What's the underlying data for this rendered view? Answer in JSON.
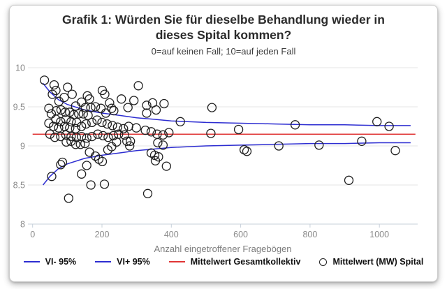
{
  "chart_data": {
    "type": "scatter",
    "title": "Grafik 1: Würden Sie für dieselbe Behandlung wieder in dieses Spital kommen?",
    "subtitle": "0=auf keinen Fall; 10=auf jeden Fall",
    "xlabel": "Anzahl eingetroffener Fragebögen",
    "ylabel": "",
    "xlim": [
      0,
      1120
    ],
    "ylim": [
      8,
      10
    ],
    "xticks": [
      0,
      200,
      400,
      600,
      800,
      1000
    ],
    "yticks": [
      10,
      9.5,
      9,
      8.5,
      8
    ],
    "ytick_labels": [
      "10",
      "9.5",
      "9",
      "8.5",
      "8"
    ],
    "grid": "horizontal-only",
    "legend_position": "bottom",
    "colors": {
      "band_line": "#2d2dd1",
      "mean_line": "#e03535",
      "marker_stroke": "#1f1f1f",
      "grid": "#e6e6e6",
      "axis": "#c7d0da",
      "tick_text": "#8a8a8a",
      "axis_title_text": "#7d7d7d"
    },
    "series": [
      {
        "name": "VI- 95%",
        "type": "line",
        "color": "#2d2dd1",
        "points": [
          [
            30,
            8.5
          ],
          [
            50,
            8.61
          ],
          [
            75,
            8.71
          ],
          [
            100,
            8.77
          ],
          [
            150,
            8.84
          ],
          [
            200,
            8.88
          ],
          [
            250,
            8.91
          ],
          [
            300,
            8.94
          ],
          [
            350,
            8.96
          ],
          [
            400,
            8.98
          ],
          [
            500,
            9.0
          ],
          [
            600,
            9.01
          ],
          [
            700,
            9.02
          ],
          [
            800,
            9.03
          ],
          [
            900,
            9.03
          ],
          [
            1000,
            9.04
          ],
          [
            1090,
            9.04
          ]
        ]
      },
      {
        "name": "VI+ 95%",
        "type": "line",
        "color": "#2d2dd1",
        "points": [
          [
            30,
            9.8
          ],
          [
            50,
            9.69
          ],
          [
            75,
            9.59
          ],
          [
            100,
            9.53
          ],
          [
            150,
            9.46
          ],
          [
            200,
            9.42
          ],
          [
            250,
            9.39
          ],
          [
            300,
            9.36
          ],
          [
            350,
            9.34
          ],
          [
            400,
            9.32
          ],
          [
            500,
            9.3
          ],
          [
            600,
            9.29
          ],
          [
            700,
            9.28
          ],
          [
            800,
            9.27
          ],
          [
            900,
            9.27
          ],
          [
            1000,
            9.26
          ],
          [
            1090,
            9.26
          ]
        ]
      },
      {
        "name": "Mittelwert Gesamtkollektiv",
        "type": "line",
        "color": "#e03535",
        "points": [
          [
            0,
            9.15
          ],
          [
            1104,
            9.15
          ]
        ]
      },
      {
        "name": "Mittelwert (MW) Spital",
        "type": "scatter",
        "marker": "open-circle",
        "color": "#1f1f1f",
        "points": [
          [
            34,
            9.84
          ],
          [
            62,
            9.78
          ],
          [
            67,
            9.71
          ],
          [
            101,
            9.75
          ],
          [
            114,
            9.66
          ],
          [
            57,
            9.66
          ],
          [
            201,
            9.71
          ],
          [
            305,
            9.77
          ],
          [
            91,
            9.62
          ],
          [
            76,
            9.57
          ],
          [
            158,
            9.64
          ],
          [
            164,
            9.6
          ],
          [
            141,
            9.56
          ],
          [
            124,
            9.51
          ],
          [
            152,
            9.49
          ],
          [
            168,
            9.49
          ],
          [
            181,
            9.5
          ],
          [
            197,
            9.48
          ],
          [
            211,
            9.42
          ],
          [
            222,
            9.55
          ],
          [
            208,
            9.66
          ],
          [
            256,
            9.6
          ],
          [
            275,
            9.49
          ],
          [
            228,
            9.48
          ],
          [
            234,
            9.45
          ],
          [
            47,
            9.48
          ],
          [
            54,
            9.41
          ],
          [
            68,
            9.45
          ],
          [
            82,
            9.46
          ],
          [
            94,
            9.43
          ],
          [
            107,
            9.43
          ],
          [
            119,
            9.4
          ],
          [
            133,
            9.41
          ],
          [
            146,
            9.41
          ],
          [
            160,
            9.39
          ],
          [
            67,
            9.34
          ],
          [
            81,
            9.31
          ],
          [
            96,
            9.34
          ],
          [
            111,
            9.31
          ],
          [
            127,
            9.3
          ],
          [
            47,
            9.29
          ],
          [
            60,
            9.25
          ],
          [
            75,
            9.23
          ],
          [
            92,
            9.25
          ],
          [
            107,
            9.23
          ],
          [
            124,
            9.22
          ],
          [
            141,
            9.25
          ],
          [
            154,
            9.28
          ],
          [
            171,
            9.3
          ],
          [
            186,
            9.33
          ],
          [
            200,
            9.3
          ],
          [
            215,
            9.28
          ],
          [
            230,
            9.26
          ],
          [
            245,
            9.24
          ],
          [
            262,
            9.22
          ],
          [
            277,
            9.25
          ],
          [
            292,
            9.58
          ],
          [
            346,
            9.55
          ],
          [
            379,
            9.54
          ],
          [
            329,
            9.52
          ],
          [
            356,
            9.46
          ],
          [
            329,
            9.42
          ],
          [
            50,
            9.15
          ],
          [
            64,
            9.11
          ],
          [
            81,
            9.12
          ],
          [
            96,
            9.14
          ],
          [
            111,
            9.12
          ],
          [
            126,
            9.11
          ],
          [
            141,
            9.12
          ],
          [
            156,
            9.1
          ],
          [
            171,
            9.12
          ],
          [
            188,
            9.15
          ],
          [
            203,
            9.13
          ],
          [
            218,
            9.11
          ],
          [
            233,
            9.13
          ],
          [
            248,
            9.15
          ],
          [
            265,
            9.14
          ],
          [
            282,
            9.06
          ],
          [
            299,
            9.23
          ],
          [
            325,
            9.2
          ],
          [
            342,
            9.18
          ],
          [
            359,
            9.15
          ],
          [
            376,
            9.14
          ],
          [
            393,
            9.17
          ],
          [
            426,
            9.31
          ],
          [
            514,
            9.16
          ],
          [
            517,
            9.49
          ],
          [
            594,
            9.21
          ],
          [
            610,
            8.95
          ],
          [
            618,
            8.93
          ],
          [
            97,
            9.05
          ],
          [
            111,
            9.06
          ],
          [
            124,
            9.02
          ],
          [
            138,
            9.02
          ],
          [
            151,
            9.03
          ],
          [
            242,
            9.05
          ],
          [
            361,
            9.04
          ],
          [
            272,
            9.06
          ],
          [
            280,
            9.0
          ],
          [
            228,
            8.99
          ],
          [
            217,
            8.95
          ],
          [
            164,
            8.92
          ],
          [
            181,
            8.87
          ],
          [
            191,
            8.83
          ],
          [
            201,
            8.8
          ],
          [
            86,
            8.79
          ],
          [
            81,
            8.76
          ],
          [
            156,
            8.75
          ],
          [
            141,
            8.64
          ],
          [
            55,
            8.61
          ],
          [
            168,
            8.5
          ],
          [
            207,
            8.51
          ],
          [
            104,
            8.33
          ],
          [
            332,
            8.39
          ],
          [
            342,
            8.91
          ],
          [
            352,
            8.88
          ],
          [
            363,
            8.86
          ],
          [
            354,
            8.81
          ],
          [
            386,
            8.74
          ],
          [
            376,
            9.01
          ],
          [
            710,
            9.0
          ],
          [
            757,
            9.27
          ],
          [
            826,
            9.01
          ],
          [
            912,
            8.56
          ],
          [
            949,
            9.06
          ],
          [
            993,
            9.31
          ],
          [
            1028,
            9.25
          ],
          [
            1046,
            8.94
          ]
        ]
      }
    ],
    "legend": [
      {
        "swatch": "line",
        "color": "#2d2dd1",
        "label": "VI- 95%"
      },
      {
        "swatch": "line",
        "color": "#2d2dd1",
        "label": "VI+ 95%"
      },
      {
        "swatch": "line",
        "color": "#e03535",
        "label": "Mittelwert Gesamtkollektiv"
      },
      {
        "swatch": "circle",
        "color": "#1f1f1f",
        "label": "Mittelwert (MW) Spital"
      }
    ]
  }
}
